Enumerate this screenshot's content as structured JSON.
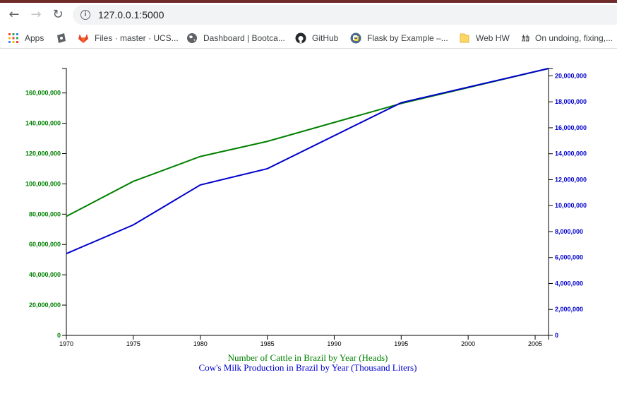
{
  "browser": {
    "url": "127.0.0.1:5000",
    "nav": {
      "back_icon": "arrow-left-icon",
      "forward_icon": "arrow-right-icon",
      "reload_icon": "reload-icon"
    },
    "bookmarks": [
      {
        "label": "Apps",
        "icon": "apps-grid-icon"
      },
      {
        "label": "",
        "icon": "puzzle-icon"
      },
      {
        "label": "Files · master · UCS...",
        "icon": "gitlab-icon"
      },
      {
        "label": "Dashboard | Bootca...",
        "icon": "globe-icon"
      },
      {
        "label": "GitHub",
        "icon": "github-icon"
      },
      {
        "label": "Flask by Example –...",
        "icon": "python-icon"
      },
      {
        "label": "Web HW",
        "icon": "folder-icon"
      },
      {
        "label": "On undoing, fixing,...",
        "icon": "kana-icon",
        "prefix": "ｶｶ"
      }
    ]
  },
  "chart_data": {
    "type": "line",
    "x": [
      1970,
      1975,
      1980,
      1985,
      1995,
      2006
    ],
    "xticks": [
      "1970",
      "1975",
      "1980",
      "1985",
      "1990",
      "1995",
      "2000",
      "2005"
    ],
    "xlim": [
      1970,
      2006
    ],
    "series": [
      {
        "name": "Number of Cattle in Brazil by Year (Heads)",
        "axis": "left",
        "color": "#008000",
        "values": [
          78562250,
          101673753,
          118085872,
          128041757,
          153058275,
          176147501
        ]
      },
      {
        "name": "Cow's Milk Production in Brazil by Year (Thousand Liters)",
        "axis": "right",
        "color": "#0000cd",
        "values": [
          6303111,
          8513783,
          11596276,
          12846432,
          17931249,
          20567868
        ]
      }
    ],
    "yleft": {
      "ylim": [
        0,
        176147501
      ],
      "ticks": [
        0,
        20000000,
        40000000,
        60000000,
        80000000,
        100000000,
        120000000,
        140000000,
        160000000
      ],
      "tick_labels": [
        "0",
        "20,000,000",
        "40,000,000",
        "60,000,000",
        "80,000,000",
        "100,000,000",
        "120,000,000",
        "140,000,000",
        "160,000,000"
      ]
    },
    "yright": {
      "ylim": [
        0,
        20567868
      ],
      "ticks": [
        0,
        2000000,
        4000000,
        6000000,
        8000000,
        10000000,
        12000000,
        14000000,
        16000000,
        18000000,
        20000000
      ],
      "tick_labels": [
        "0",
        "2,000,000",
        "4,000,000",
        "6,000,000",
        "8,000,000",
        "10,000,000",
        "12,000,000",
        "14,000,000",
        "16,000,000",
        "18,000,000",
        "20,000,000"
      ]
    },
    "xlabels": [
      {
        "text": "Number of Cattle in Brazil by Year (Heads)",
        "color": "#008000"
      },
      {
        "text": "Cow's Milk Production in Brazil by Year (Thousand Liters)",
        "color": "#0000cd"
      }
    ],
    "grid": false
  }
}
